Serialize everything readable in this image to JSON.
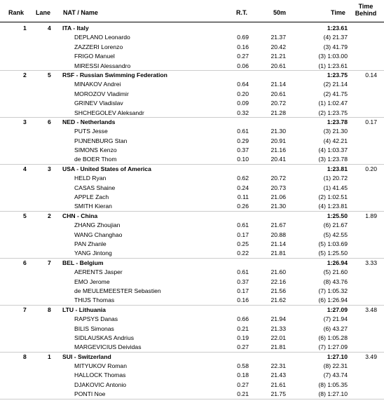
{
  "header": {
    "rank": "Rank",
    "lane": "Lane",
    "nat_name": "NAT / Name",
    "rt": "R.T.",
    "split": "50m",
    "time": "Time",
    "behind": "Time Behind"
  },
  "teams": [
    {
      "rank": "1",
      "lane": "4",
      "nat": "ITA - Italy",
      "time": "1:23.61",
      "behind": "",
      "swimmers": [
        {
          "name": "DEPLANO Leonardo",
          "rt": "0.69",
          "split": "21.37",
          "cum": "(4) 21.37"
        },
        {
          "name": "ZAZZERI Lorenzo",
          "rt": "0.16",
          "split": "20.42",
          "cum": "(3) 41.79"
        },
        {
          "name": "FRIGO Manuel",
          "rt": "0.27",
          "split": "21.21",
          "cum": "(3) 1:03.00"
        },
        {
          "name": "MIRESSI Alessandro",
          "rt": "0.06",
          "split": "20.61",
          "cum": "(1) 1:23.61"
        }
      ]
    },
    {
      "rank": "2",
      "lane": "5",
      "nat": "RSF - Russian Swimming Federation",
      "time": "1:23.75",
      "behind": "0.14",
      "swimmers": [
        {
          "name": "MINAKOV Andrei",
          "rt": "0.64",
          "split": "21.14",
          "cum": "(2) 21.14"
        },
        {
          "name": "MOROZOV Vladimir",
          "rt": "0.20",
          "split": "20.61",
          "cum": "(2) 41.75"
        },
        {
          "name": "GRINEV Vladislav",
          "rt": "0.09",
          "split": "20.72",
          "cum": "(1) 1:02.47"
        },
        {
          "name": "SHCHEGOLEV Aleksandr",
          "rt": "0.32",
          "split": "21.28",
          "cum": "(2) 1:23.75"
        }
      ]
    },
    {
      "rank": "3",
      "lane": "6",
      "nat": "NED - Netherlands",
      "time": "1:23.78",
      "behind": "0.17",
      "swimmers": [
        {
          "name": "PUTS Jesse",
          "rt": "0.61",
          "split": "21.30",
          "cum": "(3) 21.30"
        },
        {
          "name": "PIJNENBURG Stan",
          "rt": "0.29",
          "split": "20.91",
          "cum": "(4) 42.21"
        },
        {
          "name": "SIMONS Kenzo",
          "rt": "0.37",
          "split": "21.16",
          "cum": "(4) 1:03.37"
        },
        {
          "name": "de BOER Thom",
          "rt": "0.10",
          "split": "20.41",
          "cum": "(3) 1:23.78"
        }
      ]
    },
    {
      "rank": "4",
      "lane": "3",
      "nat": "USA - United States of America",
      "time": "1:23.81",
      "behind": "0.20",
      "swimmers": [
        {
          "name": "HELD Ryan",
          "rt": "0.62",
          "split": "20.72",
          "cum": "(1) 20.72"
        },
        {
          "name": "CASAS Shaine",
          "rt": "0.24",
          "split": "20.73",
          "cum": "(1) 41.45"
        },
        {
          "name": "APPLE Zach",
          "rt": "0.11",
          "split": "21.06",
          "cum": "(2) 1:02.51"
        },
        {
          "name": "SMITH Kieran",
          "rt": "0.26",
          "split": "21.30",
          "cum": "(4) 1:23.81"
        }
      ]
    },
    {
      "rank": "5",
      "lane": "2",
      "nat": "CHN - China",
      "time": "1:25.50",
      "behind": "1.89",
      "swimmers": [
        {
          "name": "ZHANG Zhoujian",
          "rt": "0.61",
          "split": "21.67",
          "cum": "(6) 21.67"
        },
        {
          "name": "WANG Changhao",
          "rt": "0.17",
          "split": "20.88",
          "cum": "(5) 42.55"
        },
        {
          "name": "PAN Zhanle",
          "rt": "0.25",
          "split": "21.14",
          "cum": "(5) 1:03.69"
        },
        {
          "name": "YANG Jintong",
          "rt": "0.22",
          "split": "21.81",
          "cum": "(5) 1:25.50"
        }
      ]
    },
    {
      "rank": "6",
      "lane": "7",
      "nat": "BEL - Belgium",
      "time": "1:26.94",
      "behind": "3.33",
      "swimmers": [
        {
          "name": "AERENTS Jasper",
          "rt": "0.61",
          "split": "21.60",
          "cum": "(5) 21.60"
        },
        {
          "name": "EMO Jerome",
          "rt": "0.37",
          "split": "22.16",
          "cum": "(8) 43.76"
        },
        {
          "name": "de MEULEMEESTER Sebastien",
          "rt": "0.17",
          "split": "21.56",
          "cum": "(7) 1:05.32"
        },
        {
          "name": "THIJS Thomas",
          "rt": "0.16",
          "split": "21.62",
          "cum": "(6) 1:26.94"
        }
      ]
    },
    {
      "rank": "7",
      "lane": "8",
      "nat": "LTU - Lithuania",
      "time": "1:27.09",
      "behind": "3.48",
      "swimmers": [
        {
          "name": "RAPSYS Danas",
          "rt": "0.66",
          "split": "21.94",
          "cum": "(7) 21.94"
        },
        {
          "name": "BILIS Simonas",
          "rt": "0.21",
          "split": "21.33",
          "cum": "(6) 43.27"
        },
        {
          "name": "SIDLAUSKAS Andrius",
          "rt": "0.19",
          "split": "22.01",
          "cum": "(6) 1:05.28"
        },
        {
          "name": "MARGEVICIUS Deividas",
          "rt": "0.27",
          "split": "21.81",
          "cum": "(7) 1:27.09"
        }
      ]
    },
    {
      "rank": "8",
      "lane": "1",
      "nat": "SUI - Switzerland",
      "time": "1:27.10",
      "behind": "3.49",
      "swimmers": [
        {
          "name": "MITYUKOV Roman",
          "rt": "0.58",
          "split": "22.31",
          "cum": "(8) 22.31"
        },
        {
          "name": "HALLOCK Thomas",
          "rt": "0.18",
          "split": "21.43",
          "cum": "(7) 43.74"
        },
        {
          "name": "DJAKOVIC Antonio",
          "rt": "0.27",
          "split": "21.61",
          "cum": "(8) 1:05.35"
        },
        {
          "name": "PONTI Noe",
          "rt": "0.21",
          "split": "21.75",
          "cum": "(8) 1:27.10"
        }
      ]
    }
  ]
}
